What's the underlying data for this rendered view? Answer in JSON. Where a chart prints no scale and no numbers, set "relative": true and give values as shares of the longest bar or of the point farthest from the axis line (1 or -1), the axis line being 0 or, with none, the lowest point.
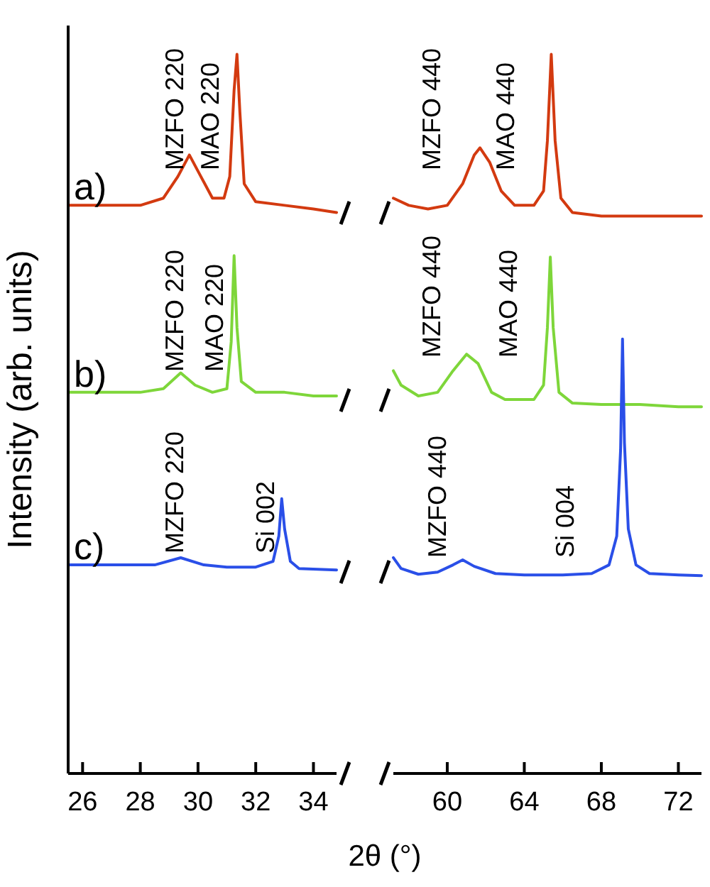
{
  "chart_data": [
    {
      "type": "line",
      "relative": true,
      "ylabel": "Intensity (arb. units)",
      "xlabel": "2θ (°)",
      "xlim": [
        25.5,
        34.8
      ],
      "xticks": [
        26,
        28,
        30,
        32,
        34
      ],
      "tick_labels": "x",
      "series": [
        {
          "name": "a)",
          "color": "#d33a10",
          "x": [
            25.5,
            26,
            27,
            28,
            28.8,
            29.3,
            29.7,
            30.1,
            30.5,
            30.9,
            31.1,
            31.25,
            31.35,
            31.45,
            31.6,
            32,
            33,
            34,
            34.8
          ],
          "values": [
            0.79,
            0.79,
            0.79,
            0.79,
            0.8,
            0.83,
            0.86,
            0.83,
            0.8,
            0.8,
            0.83,
            0.95,
            1,
            0.92,
            0.82,
            0.795,
            0.79,
            0.785,
            0.78
          ]
        },
        {
          "name": "b)",
          "color": "#7ed63a",
          "x": [
            25.5,
            26,
            27,
            28,
            28.8,
            29.4,
            29.9,
            30.5,
            31,
            31.15,
            31.25,
            31.35,
            31.5,
            32,
            33,
            34,
            34.8
          ],
          "values": [
            0.53,
            0.53,
            0.53,
            0.53,
            0.535,
            0.557,
            0.54,
            0.53,
            0.535,
            0.6,
            0.72,
            0.62,
            0.545,
            0.53,
            0.53,
            0.525,
            0.525
          ]
        },
        {
          "name": "c)",
          "color": "#2a4fe8",
          "x": [
            25.5,
            27,
            28.5,
            29.4,
            30.2,
            31,
            32,
            32.6,
            32.8,
            32.9,
            33,
            33.2,
            33.5,
            34.8
          ],
          "values": [
            0.29,
            0.29,
            0.29,
            0.3,
            0.29,
            0.287,
            0.287,
            0.295,
            0.33,
            0.382,
            0.34,
            0.295,
            0.285,
            0.283
          ]
        }
      ],
      "annotations": [
        "MZFO 220",
        "MAO 220",
        "MZFO 220",
        "MAO 220",
        "MZFO 220",
        "Si 002"
      ]
    },
    {
      "type": "line",
      "relative": true,
      "xlim": [
        57.2,
        73.2
      ],
      "xticks": [
        60,
        64,
        68,
        72
      ],
      "tick_labels": "x",
      "series": [
        {
          "color": "#d33a10",
          "x": [
            57.2,
            58,
            59,
            60,
            60.8,
            61.4,
            61.7,
            62.2,
            62.8,
            63.5,
            64.5,
            65,
            65.2,
            65.4,
            65.6,
            65.9,
            66.5,
            68,
            70,
            72,
            73.2
          ],
          "values": [
            0.8,
            0.79,
            0.785,
            0.79,
            0.82,
            0.86,
            0.87,
            0.85,
            0.81,
            0.79,
            0.79,
            0.81,
            0.88,
            1.0,
            0.88,
            0.8,
            0.78,
            0.775,
            0.775,
            0.775,
            0.775
          ]
        },
        {
          "color": "#7ed63a",
          "x": [
            57.2,
            57.6,
            58.5,
            59.5,
            60.3,
            61,
            61.6,
            62.3,
            63,
            64.5,
            65,
            65.2,
            65.35,
            65.5,
            65.8,
            66.5,
            68,
            70,
            72,
            73.2
          ],
          "values": [
            0.56,
            0.54,
            0.525,
            0.53,
            0.56,
            0.583,
            0.57,
            0.53,
            0.52,
            0.52,
            0.54,
            0.62,
            0.718,
            0.62,
            0.53,
            0.515,
            0.513,
            0.513,
            0.51,
            0.51
          ]
        },
        {
          "color": "#2a4fe8",
          "x": [
            57.2,
            57.6,
            58.5,
            59.5,
            60.3,
            60.8,
            61.4,
            62.5,
            64,
            66,
            67.5,
            68.4,
            68.8,
            69,
            69.1,
            69.2,
            69.4,
            69.8,
            70.5,
            72,
            73.2
          ],
          "values": [
            0.3,
            0.285,
            0.277,
            0.28,
            0.29,
            0.297,
            0.288,
            0.278,
            0.276,
            0.276,
            0.278,
            0.29,
            0.33,
            0.45,
            0.604,
            0.46,
            0.34,
            0.29,
            0.278,
            0.276,
            0.275
          ]
        }
      ],
      "annotations": [
        "MZFO 440",
        "MAO 440",
        "MZFO 440",
        "MAO 440",
        "MZFO 440",
        "Si 004"
      ]
    }
  ]
}
